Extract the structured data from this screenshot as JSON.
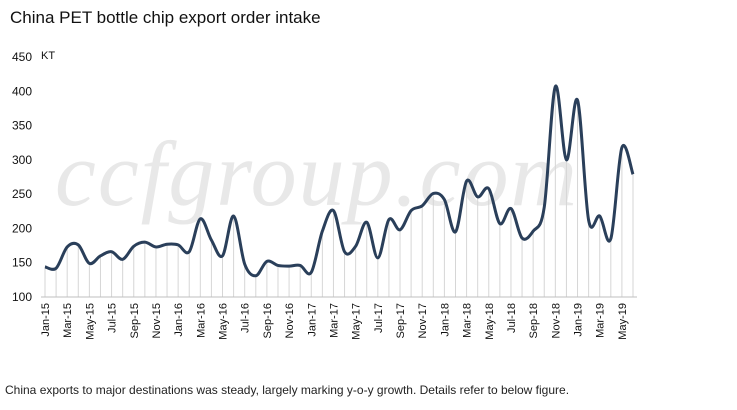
{
  "chart_data": {
    "type": "line",
    "title": "China PET bottle chip export order intake",
    "unit_label": "KT",
    "watermark": "ccfgroup.com",
    "ylim": [
      100,
      450
    ],
    "yticks": [
      100,
      150,
      200,
      250,
      300,
      350,
      400,
      450
    ],
    "x": [
      "Jan-15",
      "Feb-15",
      "Mar-15",
      "Apr-15",
      "May-15",
      "Jun-15",
      "Jul-15",
      "Aug-15",
      "Sep-15",
      "Oct-15",
      "Nov-15",
      "Dec-15",
      "Jan-16",
      "Feb-16",
      "Mar-16",
      "Apr-16",
      "May-16",
      "Jun-16",
      "Jul-16",
      "Aug-16",
      "Sep-16",
      "Oct-16",
      "Nov-16",
      "Dec-16",
      "Jan-17",
      "Feb-17",
      "Mar-17",
      "Apr-17",
      "May-17",
      "Jun-17",
      "Jul-17",
      "Aug-17",
      "Sep-17",
      "Oct-17",
      "Nov-17",
      "Dec-17",
      "Jan-18",
      "Feb-18",
      "Mar-18",
      "Apr-18",
      "May-18",
      "Jun-18",
      "Jul-18",
      "Aug-18",
      "Sep-18",
      "Oct-18",
      "Nov-18",
      "Dec-18",
      "Jan-19",
      "Feb-19",
      "Mar-19",
      "Apr-19",
      "May-19",
      "Jun-19"
    ],
    "xtick_labels": [
      "Jan-15",
      "Mar-15",
      "May-15",
      "Jul-15",
      "Sep-15",
      "Nov-15",
      "Jan-16",
      "Mar-16",
      "May-16",
      "Jul-16",
      "Sep-16",
      "Nov-16",
      "Jan-17",
      "Mar-17",
      "May-17",
      "Jul-17",
      "Sep-17",
      "Nov-17",
      "Jan-18",
      "Mar-18",
      "May-18",
      "Jul-18",
      "Sep-18",
      "Nov-18",
      "Jan-19",
      "Mar-19",
      "May-19"
    ],
    "series": [
      {
        "values": [
          144,
          142,
          173,
          176,
          149,
          160,
          166,
          155,
          174,
          180,
          173,
          177,
          176,
          166,
          214,
          183,
          160,
          218,
          148,
          131,
          152,
          146,
          145,
          146,
          136,
          196,
          226,
          166,
          174,
          209,
          157,
          213,
          198,
          226,
          233,
          251,
          242,
          195,
          269,
          246,
          258,
          207,
          229,
          186,
          196,
          231,
          407,
          300,
          387,
          212,
          218,
          185,
          318,
          279
        ]
      }
    ],
    "grid": false,
    "vertical_drop_lines": true,
    "line_color": "#2a3f5a"
  },
  "caption": "China exports to major destinations was steady, largely marking y-o-y growth. Details refer to below figure."
}
